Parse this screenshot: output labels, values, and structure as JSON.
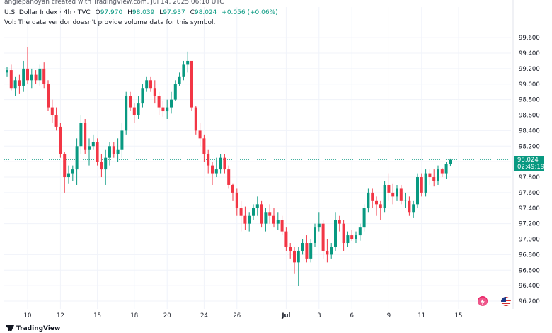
{
  "header": {
    "watermark": "angiepanoyan created with TradingView.com, Jul 14, 2025 06:10 UTC",
    "symbol": "U.S. Dollar Index · 4h · TVC",
    "ohlc": {
      "o_label": "O",
      "o": "97.970",
      "h_label": "H",
      "h": "98.039",
      "l_label": "L",
      "l": "97.937",
      "c_label": "C",
      "c": "98.024",
      "change": "+0.056 (+0.06%)"
    },
    "volume_note": "Vol: The data vendor doesn't provide volume data for this symbol."
  },
  "price_tag": {
    "price": "98.024",
    "countdown": "02:49:19"
  },
  "footer": {
    "logo": "TradingView"
  },
  "colors": {
    "up": "#089981",
    "down": "#f23645",
    "grid": "#f0f3fa",
    "axis_text": "#131722",
    "last_line": "#089981"
  },
  "icons": [
    "lightning-event-icon",
    "us-flag-event-icon",
    "tradingview-logo-icon"
  ],
  "chart_data": {
    "type": "candlestick",
    "timeframe": "4h",
    "ylim": [
      96.1,
      99.72
    ],
    "y_ticks": [
      "99.600",
      "99.400",
      "99.200",
      "99.000",
      "98.800",
      "98.600",
      "98.400",
      "98.200",
      "98.000",
      "97.800",
      "97.600",
      "97.400",
      "97.200",
      "97.000",
      "96.800",
      "96.600",
      "96.400",
      "96.200"
    ],
    "x_ticks": [
      {
        "label": "10",
        "bar": 5
      },
      {
        "label": "12",
        "bar": 13
      },
      {
        "label": "15",
        "bar": 22
      },
      {
        "label": "18",
        "bar": 31
      },
      {
        "label": "20",
        "bar": 39
      },
      {
        "label": "24",
        "bar": 48
      },
      {
        "label": "26",
        "bar": 56
      },
      {
        "label": "Jul",
        "bar": 68
      },
      {
        "label": "3",
        "bar": 76
      },
      {
        "label": "6",
        "bar": 84
      },
      {
        "label": "9",
        "bar": 93
      },
      {
        "label": "11",
        "bar": 101
      },
      {
        "label": "15",
        "bar": 110
      }
    ],
    "last_price": 98.024,
    "candles": [
      [
        99.15,
        99.22,
        99.1,
        99.18
      ],
      [
        99.18,
        99.25,
        98.92,
        98.95
      ],
      [
        98.95,
        99.1,
        98.85,
        99.05
      ],
      [
        99.05,
        99.12,
        98.88,
        98.98
      ],
      [
        98.98,
        99.3,
        98.9,
        99.2
      ],
      [
        99.2,
        99.48,
        99.0,
        99.05
      ],
      [
        99.05,
        99.2,
        98.95,
        99.12
      ],
      [
        99.12,
        99.18,
        99.0,
        99.05
      ],
      [
        99.05,
        99.25,
        98.98,
        99.2
      ],
      [
        99.2,
        99.28,
        98.95,
        99.0
      ],
      [
        99.0,
        99.05,
        98.65,
        98.7
      ],
      [
        98.7,
        98.8,
        98.5,
        98.6
      ],
      [
        98.6,
        98.7,
        98.4,
        98.45
      ],
      [
        98.45,
        98.5,
        98.05,
        98.1
      ],
      [
        98.1,
        98.12,
        97.6,
        97.8
      ],
      [
        97.8,
        97.95,
        97.72,
        97.85
      ],
      [
        97.85,
        97.95,
        97.75,
        97.9
      ],
      [
        97.9,
        98.3,
        97.7,
        98.2
      ],
      [
        98.2,
        98.6,
        98.1,
        98.5
      ],
      [
        98.5,
        98.55,
        98.1,
        98.15
      ],
      [
        98.15,
        98.3,
        97.95,
        98.2
      ],
      [
        98.2,
        98.35,
        98.15,
        98.25
      ],
      [
        98.25,
        98.3,
        97.95,
        98.0
      ],
      [
        98.0,
        98.1,
        97.8,
        97.9
      ],
      [
        97.9,
        98.15,
        97.7,
        98.05
      ],
      [
        98.05,
        98.25,
        97.95,
        98.2
      ],
      [
        98.2,
        98.25,
        98.05,
        98.1
      ],
      [
        98.1,
        98.3,
        98.0,
        98.15
      ],
      [
        98.15,
        98.5,
        98.05,
        98.4
      ],
      [
        98.4,
        98.9,
        98.35,
        98.85
      ],
      [
        98.85,
        98.9,
        98.65,
        98.7
      ],
      [
        98.7,
        98.75,
        98.5,
        98.6
      ],
      [
        98.6,
        98.85,
        98.55,
        98.75
      ],
      [
        98.75,
        99.0,
        98.7,
        98.95
      ],
      [
        98.95,
        99.1,
        98.9,
        99.05
      ],
      [
        99.05,
        99.1,
        98.9,
        98.95
      ],
      [
        98.95,
        99.05,
        98.75,
        98.85
      ],
      [
        98.85,
        98.9,
        98.6,
        98.7
      ],
      [
        98.7,
        98.78,
        98.58,
        98.65
      ],
      [
        98.65,
        98.8,
        98.55,
        98.7
      ],
      [
        98.7,
        98.9,
        98.62,
        98.8
      ],
      [
        98.8,
        99.05,
        98.78,
        99.0
      ],
      [
        99.0,
        99.15,
        98.98,
        99.1
      ],
      [
        99.1,
        99.3,
        99.05,
        99.25
      ],
      [
        99.25,
        99.42,
        99.15,
        99.3
      ],
      [
        99.3,
        99.3,
        98.65,
        98.7
      ],
      [
        98.7,
        98.72,
        98.35,
        98.4
      ],
      [
        98.4,
        98.5,
        98.2,
        98.3
      ],
      [
        98.3,
        98.35,
        98.0,
        98.1
      ],
      [
        98.1,
        98.15,
        97.85,
        97.95
      ],
      [
        97.95,
        98.0,
        97.7,
        97.85
      ],
      [
        97.85,
        98.05,
        97.8,
        97.9
      ],
      [
        97.9,
        98.1,
        97.85,
        98.05
      ],
      [
        98.05,
        98.1,
        97.85,
        97.9
      ],
      [
        97.9,
        97.95,
        97.65,
        97.7
      ],
      [
        97.7,
        97.72,
        97.5,
        97.6
      ],
      [
        97.6,
        97.65,
        97.3,
        97.4
      ],
      [
        97.4,
        97.5,
        97.1,
        97.3
      ],
      [
        97.3,
        97.42,
        97.12,
        97.2
      ],
      [
        97.2,
        97.35,
        97.1,
        97.3
      ],
      [
        97.3,
        97.45,
        97.25,
        97.4
      ],
      [
        97.4,
        97.55,
        97.3,
        97.45
      ],
      [
        97.45,
        97.5,
        97.15,
        97.2
      ],
      [
        97.2,
        97.4,
        97.1,
        97.35
      ],
      [
        97.35,
        97.45,
        97.2,
        97.3
      ],
      [
        97.3,
        97.4,
        97.15,
        97.2
      ],
      [
        97.2,
        97.35,
        97.12,
        97.25
      ],
      [
        97.25,
        97.3,
        97.05,
        97.1
      ],
      [
        97.1,
        97.15,
        96.85,
        96.9
      ],
      [
        96.9,
        96.95,
        96.75,
        96.85
      ],
      [
        96.85,
        96.9,
        96.55,
        96.7
      ],
      [
        96.7,
        96.9,
        96.4,
        96.85
      ],
      [
        96.85,
        97.0,
        96.8,
        96.95
      ],
      [
        96.95,
        97.05,
        96.7,
        96.75
      ],
      [
        96.75,
        97.0,
        96.7,
        96.95
      ],
      [
        96.95,
        97.2,
        96.9,
        97.15
      ],
      [
        97.15,
        97.35,
        97.1,
        97.2
      ],
      [
        97.2,
        97.25,
        96.75,
        96.85
      ],
      [
        96.85,
        97.0,
        96.7,
        96.8
      ],
      [
        96.8,
        96.95,
        96.75,
        96.9
      ],
      [
        96.9,
        97.35,
        96.85,
        97.25
      ],
      [
        97.25,
        97.3,
        97.1,
        97.2
      ],
      [
        97.2,
        97.25,
        96.85,
        96.95
      ],
      [
        96.95,
        97.1,
        96.9,
        97.05
      ],
      [
        97.05,
        97.12,
        96.98,
        97.0
      ],
      [
        97.0,
        97.1,
        96.95,
        97.05
      ],
      [
        97.05,
        97.2,
        96.98,
        97.15
      ],
      [
        97.15,
        97.45,
        97.1,
        97.4
      ],
      [
        97.4,
        97.65,
        97.35,
        97.6
      ],
      [
        97.6,
        97.65,
        97.4,
        97.5
      ],
      [
        97.5,
        97.55,
        97.3,
        97.45
      ],
      [
        97.45,
        97.5,
        97.25,
        97.4
      ],
      [
        97.4,
        97.75,
        97.35,
        97.7
      ],
      [
        97.7,
        97.85,
        97.5,
        97.6
      ],
      [
        97.6,
        97.72,
        97.45,
        97.55
      ],
      [
        97.55,
        97.7,
        97.5,
        97.65
      ],
      [
        97.65,
        97.7,
        97.45,
        97.5
      ],
      [
        97.5,
        97.6,
        97.4,
        97.5
      ],
      [
        97.5,
        97.55,
        97.3,
        97.35
      ],
      [
        97.35,
        97.5,
        97.28,
        97.45
      ],
      [
        97.45,
        97.85,
        97.4,
        97.8
      ],
      [
        97.8,
        97.85,
        97.55,
        97.6
      ],
      [
        97.6,
        97.9,
        97.55,
        97.85
      ],
      [
        97.85,
        97.9,
        97.7,
        97.8
      ],
      [
        97.8,
        97.9,
        97.68,
        97.75
      ],
      [
        97.75,
        97.95,
        97.7,
        97.9
      ],
      [
        97.9,
        97.92,
        97.8,
        97.85
      ],
      [
        97.85,
        98.0,
        97.78,
        97.97
      ],
      [
        97.97,
        98.039,
        97.937,
        98.024
      ]
    ]
  }
}
